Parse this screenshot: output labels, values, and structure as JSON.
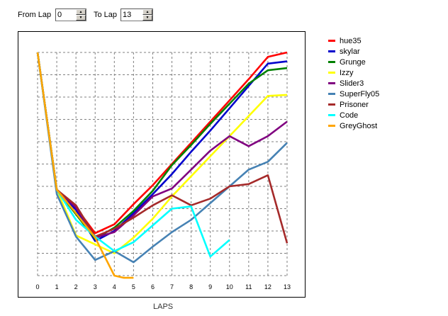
{
  "controls": {
    "from_label": "From Lap",
    "from_value": "0",
    "to_label": "To Lap",
    "to_value": "13"
  },
  "chart_data": {
    "type": "line",
    "xlabel": "LAPS",
    "ylabel": "",
    "x": [
      0,
      1,
      2,
      3,
      4,
      5,
      6,
      7,
      8,
      9,
      10,
      11,
      12,
      13
    ],
    "xlim": [
      0,
      13
    ],
    "ylim": [
      0,
      10
    ],
    "grid": true,
    "legend_position": "right",
    "series": [
      {
        "name": "hue35",
        "color": "#ff0000",
        "x": [
          0,
          1,
          2,
          3,
          4,
          5,
          6,
          7,
          8,
          9,
          10,
          11,
          12,
          13
        ],
        "y": [
          10,
          3.85,
          3.05,
          1.9,
          2.3,
          3.2,
          4.05,
          5.0,
          5.95,
          6.9,
          7.85,
          8.8,
          9.8,
          10.0
        ]
      },
      {
        "name": "skylar",
        "color": "#0000cc",
        "x": [
          0,
          1,
          2,
          3,
          4,
          5,
          6,
          7,
          8,
          9,
          10,
          11,
          12,
          13
        ],
        "y": [
          10,
          3.85,
          2.95,
          1.55,
          2.0,
          2.8,
          3.65,
          4.55,
          5.55,
          6.5,
          7.5,
          8.5,
          9.5,
          9.6
        ]
      },
      {
        "name": "Grunge",
        "color": "#008000",
        "x": [
          0,
          1,
          2,
          3,
          4,
          5,
          6,
          7,
          8,
          9,
          10,
          11,
          12,
          13
        ],
        "y": [
          10,
          3.85,
          2.75,
          1.65,
          2.15,
          2.9,
          3.8,
          4.95,
          5.85,
          6.8,
          7.7,
          8.6,
          9.2,
          9.3
        ]
      },
      {
        "name": "Izzy",
        "color": "#ffff00",
        "x": [
          0,
          1,
          2,
          3,
          4,
          5,
          6,
          7,
          8,
          9,
          10,
          11,
          12,
          13
        ],
        "y": [
          10,
          3.85,
          1.8,
          1.4,
          1.0,
          1.7,
          2.55,
          3.55,
          4.45,
          5.35,
          6.25,
          7.15,
          8.05,
          8.1
        ]
      },
      {
        "name": "Slider3",
        "color": "#800080",
        "x": [
          0,
          1,
          2,
          3,
          4,
          5,
          6,
          7,
          8,
          9,
          10,
          11,
          12,
          13
        ],
        "y": [
          10,
          3.85,
          3.05,
          1.7,
          1.95,
          2.7,
          3.55,
          3.9,
          4.75,
          5.6,
          6.25,
          5.8,
          6.25,
          6.9
        ]
      },
      {
        "name": "SuperFly05",
        "color": "#4682b4",
        "x": [
          0,
          1,
          2,
          3,
          4,
          5,
          6,
          7,
          8,
          9,
          10,
          11,
          12,
          13
        ],
        "y": [
          10,
          3.65,
          1.75,
          0.7,
          1.1,
          0.6,
          1.3,
          1.95,
          2.5,
          3.25,
          4.0,
          4.75,
          5.1,
          5.95
        ]
      },
      {
        "name": "Prisoner",
        "color": "#a52a2a",
        "x": [
          0,
          1,
          2,
          3,
          4,
          5,
          6,
          7,
          8,
          9,
          10,
          11,
          12,
          13
        ],
        "y": [
          10,
          3.85,
          3.15,
          1.75,
          2.1,
          2.6,
          3.15,
          3.6,
          3.15,
          3.45,
          4.0,
          4.1,
          4.5,
          1.45
        ]
      },
      {
        "name": "Code",
        "color": "#00ffff",
        "x": [
          0,
          1,
          2,
          3,
          4,
          5,
          6,
          7,
          8,
          9,
          10
        ],
        "y": [
          10,
          3.85,
          2.5,
          1.75,
          1.1,
          1.5,
          2.25,
          3.0,
          3.1,
          0.85,
          1.6
        ]
      },
      {
        "name": "GreyGhost",
        "color": "#ffa500",
        "x": [
          0,
          1,
          2,
          3,
          4,
          4.5,
          5
        ],
        "y": [
          10,
          3.85,
          2.8,
          1.7,
          0.0,
          -0.1,
          -0.1
        ]
      }
    ]
  }
}
